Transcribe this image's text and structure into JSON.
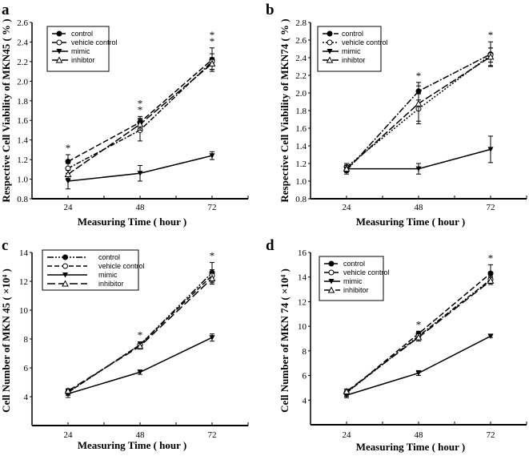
{
  "chart_data": [
    {
      "panel": "a",
      "type": "line",
      "title": "",
      "xlabel": "Measuring Time ( hour )",
      "ylabel": "Respective Cell Viability of MKN45 ( % )",
      "x": [
        24,
        48,
        72
      ],
      "xticks": [
        "24",
        "48",
        "72"
      ],
      "ylim": [
        0.8,
        2.6
      ],
      "yticks": [
        "0.8",
        "1.0",
        "1.2",
        "1.4",
        "1.6",
        "1.8",
        "2.0",
        "2.2",
        "2.4",
        "2.6"
      ],
      "legend": "top-left",
      "series": [
        {
          "name": "control",
          "values": [
            1.18,
            1.58,
            2.22
          ],
          "err": [
            0.07,
            0.06,
            0.12
          ],
          "marker": "filled-circle",
          "dash": "7,3"
        },
        {
          "name": "vehicle control",
          "values": [
            1.11,
            1.5,
            2.2
          ],
          "err": [
            0.05,
            0.11,
            0.08
          ],
          "marker": "open-circle",
          "dash": "6,2,2,2"
        },
        {
          "name": "mimic",
          "values": [
            0.98,
            1.06,
            1.24
          ],
          "err": [
            0.08,
            0.08,
            0.04
          ],
          "marker": "filled-triangle-down",
          "dash": ""
        },
        {
          "name": "inhibtor",
          "values": [
            1.05,
            1.56,
            2.18
          ],
          "err": [
            0.04,
            0.06,
            0.06
          ],
          "marker": "open-triangle",
          "dash": "9,3"
        }
      ],
      "annotations": [
        {
          "x": 24,
          "text": "*"
        },
        {
          "x": 48,
          "text": "*\n*"
        },
        {
          "x": 72,
          "text": "*\n*"
        }
      ]
    },
    {
      "panel": "b",
      "type": "line",
      "title": "",
      "xlabel": "Measuring Time ( hour )",
      "ylabel": "Respective Cell Viability of MKN74 ( % )",
      "x": [
        24,
        48,
        72
      ],
      "xticks": [
        "24",
        "48",
        "72"
      ],
      "ylim": [
        0.8,
        2.8
      ],
      "yticks": [
        "0.8",
        "1.0",
        "1.2",
        "1.4",
        "1.6",
        "1.8",
        "2.0",
        "2.2",
        "2.4",
        "2.6",
        "2.8"
      ],
      "legend": "top-left",
      "series": [
        {
          "name": "control",
          "values": [
            1.12,
            2.02,
            2.44
          ],
          "err": [
            0.04,
            0.1,
            0.14
          ],
          "marker": "filled-circle",
          "dash": "8,2,2,2"
        },
        {
          "name": "vehicle control",
          "values": [
            1.16,
            1.82,
            2.43
          ],
          "err": [
            0.04,
            0.17,
            0.08
          ],
          "marker": "open-circle",
          "dash": "2,2"
        },
        {
          "name": "mimic",
          "values": [
            1.14,
            1.14,
            1.36
          ],
          "err": [
            0.04,
            0.06,
            0.15
          ],
          "marker": "filled-triangle-down",
          "dash": ""
        },
        {
          "name": "inhibtor",
          "values": [
            1.14,
            1.88,
            2.41
          ],
          "err": [
            0.04,
            0.2,
            0.1
          ],
          "marker": "open-triangle",
          "dash": "9,3"
        }
      ],
      "annotations": [
        {
          "x": 48,
          "text": "*"
        },
        {
          "x": 72,
          "text": "*"
        }
      ]
    },
    {
      "panel": "c",
      "type": "line",
      "title": "",
      "xlabel": "Measuring Time ( hour )",
      "ylabel": "Cell Number of MKN 45 ( ×10⁴ )",
      "x": [
        24,
        48,
        72
      ],
      "xticks": [
        "24",
        "48",
        "72"
      ],
      "ylim": [
        2,
        14
      ],
      "yticks": [
        "4",
        "6",
        "8",
        "10",
        "12",
        "14"
      ],
      "legend": "top-left",
      "series": [
        {
          "name": "control",
          "values": [
            4.3,
            7.6,
            12.6
          ],
          "err": [
            0.2,
            0.2,
            0.7
          ],
          "marker": "filled-circle",
          "dash": "8,2,2,2,2,2"
        },
        {
          "name": "vehicle control",
          "values": [
            4.3,
            7.6,
            12.4
          ],
          "err": [
            0.2,
            0.2,
            0.4
          ],
          "marker": "open-circle",
          "dash": "6,3"
        },
        {
          "name": "mimic",
          "values": [
            4.2,
            5.7,
            8.1
          ],
          "err": [
            0.25,
            0.15,
            0.25
          ],
          "marker": "filled-triangle-down",
          "dash": ""
        },
        {
          "name": "inhibitor",
          "values": [
            4.4,
            7.5,
            12.2
          ],
          "err": [
            0.15,
            0.2,
            0.4
          ],
          "marker": "open-triangle",
          "dash": "10,4"
        }
      ],
      "annotations": [
        {
          "x": 48,
          "text": "*"
        },
        {
          "x": 72,
          "text": "*"
        }
      ]
    },
    {
      "panel": "d",
      "type": "line",
      "title": "",
      "xlabel": "Measuring Time ( hour )",
      "ylabel": "Cell Number of MKN 74 ( ×10⁴ )",
      "x": [
        24,
        48,
        72
      ],
      "xticks": [
        "24",
        "48",
        "72"
      ],
      "ylim": [
        2,
        16
      ],
      "yticks": [
        "4",
        "6",
        "8",
        "10",
        "12",
        "14",
        "16"
      ],
      "legend": "top-left",
      "series": [
        {
          "name": "control",
          "values": [
            4.6,
            9.4,
            14.3
          ],
          "err": [
            0.3,
            0.2,
            0.7
          ],
          "marker": "filled-circle",
          "dash": "7,3"
        },
        {
          "name": "vehicle control",
          "values": [
            4.6,
            9.2,
            13.8
          ],
          "err": [
            0.2,
            0.2,
            0.3
          ],
          "marker": "open-circle",
          "dash": "6,2,2,2"
        },
        {
          "name": "mimic",
          "values": [
            4.4,
            6.2,
            9.2
          ],
          "err": [
            0.2,
            0.2,
            0.1
          ],
          "marker": "filled-triangle-down",
          "dash": ""
        },
        {
          "name": "inhibitor",
          "values": [
            4.7,
            9.1,
            13.7
          ],
          "err": [
            0.2,
            0.3,
            0.3
          ],
          "marker": "open-triangle",
          "dash": "10,4"
        }
      ],
      "annotations": [
        {
          "x": 48,
          "text": "*"
        },
        {
          "x": 72,
          "text": "*"
        }
      ]
    }
  ]
}
